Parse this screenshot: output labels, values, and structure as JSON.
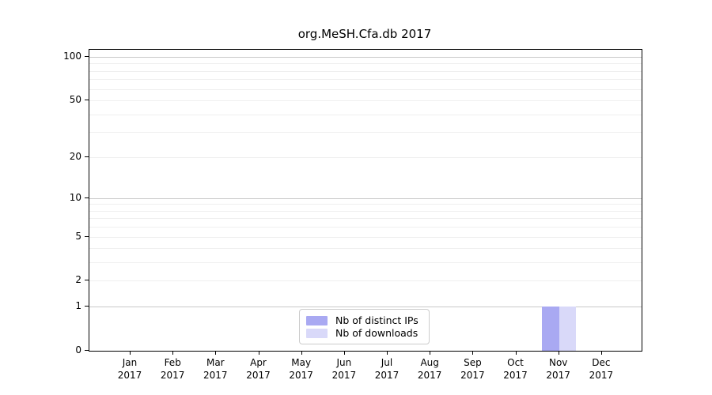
{
  "chart_data": {
    "type": "bar",
    "title": "org.MeSH.Cfa.db 2017",
    "categories": [
      "Jan",
      "Feb",
      "Mar",
      "Apr",
      "May",
      "Jun",
      "Jul",
      "Aug",
      "Sep",
      "Oct",
      "Nov",
      "Dec"
    ],
    "category_year": "2017",
    "series": [
      {
        "name": "Nb of distinct IPs",
        "color": "#a9a9f2",
        "values": [
          0,
          0,
          0,
          0,
          0,
          0,
          0,
          0,
          0,
          0,
          1,
          0
        ]
      },
      {
        "name": "Nb of downloads",
        "color": "#d9d9f9",
        "values": [
          0,
          0,
          0,
          0,
          0,
          0,
          0,
          0,
          0,
          0,
          1,
          0
        ]
      }
    ],
    "y_axis": {
      "scale": "log1p",
      "ticks": [
        0,
        1,
        2,
        5,
        10,
        20,
        50,
        100
      ],
      "lim": [
        0,
        112
      ],
      "emphasized_gridlines": [
        1,
        10,
        100
      ]
    },
    "x_axis": {
      "label": ""
    },
    "legend": {
      "position": "bottom-center"
    },
    "grid": {
      "major_color": "#c9c9c9",
      "minor_color": "#efefef"
    },
    "axis_color": "#000000",
    "background_color": "#ffffff"
  }
}
